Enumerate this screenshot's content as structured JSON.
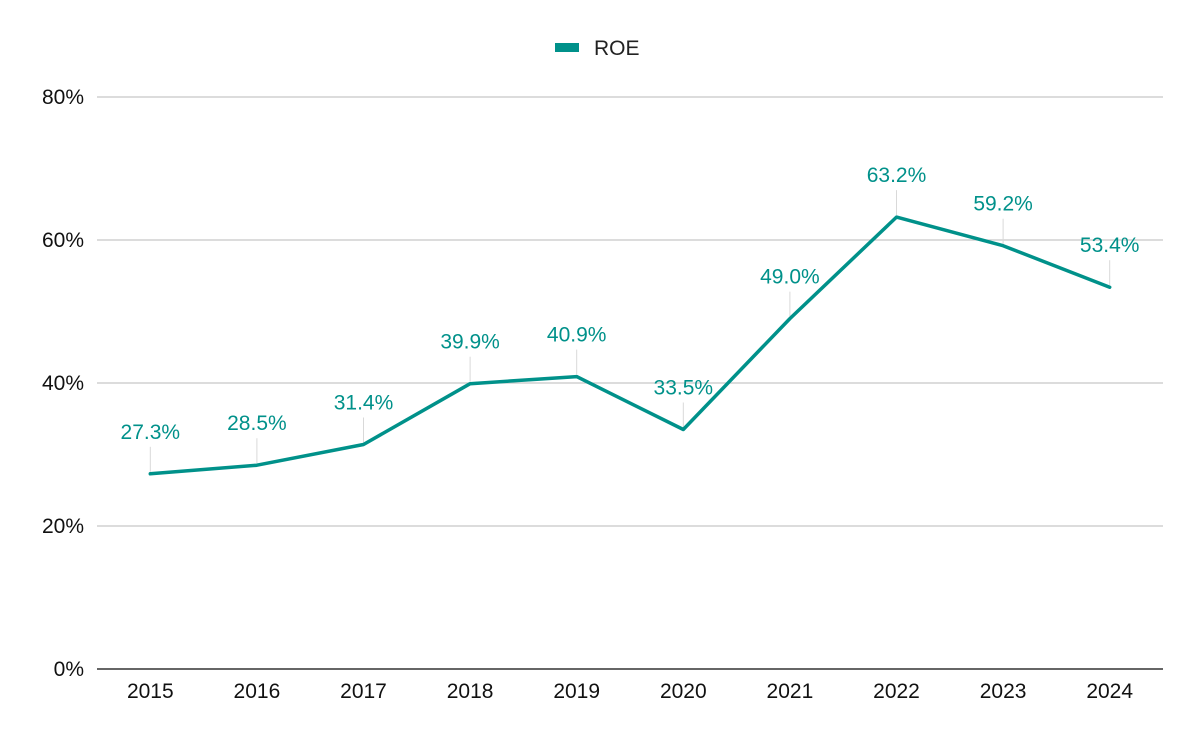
{
  "chart_data": {
    "type": "line",
    "categories": [
      "2015",
      "2016",
      "2017",
      "2018",
      "2019",
      "2020",
      "2021",
      "2022",
      "2023",
      "2024"
    ],
    "series": [
      {
        "name": "ROE",
        "values": [
          27.3,
          28.5,
          31.4,
          39.9,
          40.9,
          33.5,
          49.0,
          63.2,
          59.2,
          53.4
        ],
        "data_labels": [
          "27.3%",
          "28.5%",
          "31.4%",
          "39.9%",
          "40.9%",
          "33.5%",
          "49.0%",
          "63.2%",
          "59.2%",
          "53.4%"
        ],
        "color": "#00918A"
      }
    ],
    "y_ticks": [
      0,
      20,
      40,
      60,
      80
    ],
    "y_tick_labels": [
      "0%",
      "20%",
      "40%",
      "60%",
      "80%"
    ],
    "ylim": [
      0,
      80
    ],
    "title": "",
    "xlabel": "",
    "ylabel": "",
    "legend_position": "top-center",
    "grid": "horizontal",
    "gridline_color": "#C8C8C8",
    "axis_color": "#333333",
    "leader_line_color": "#D9D9D9"
  }
}
